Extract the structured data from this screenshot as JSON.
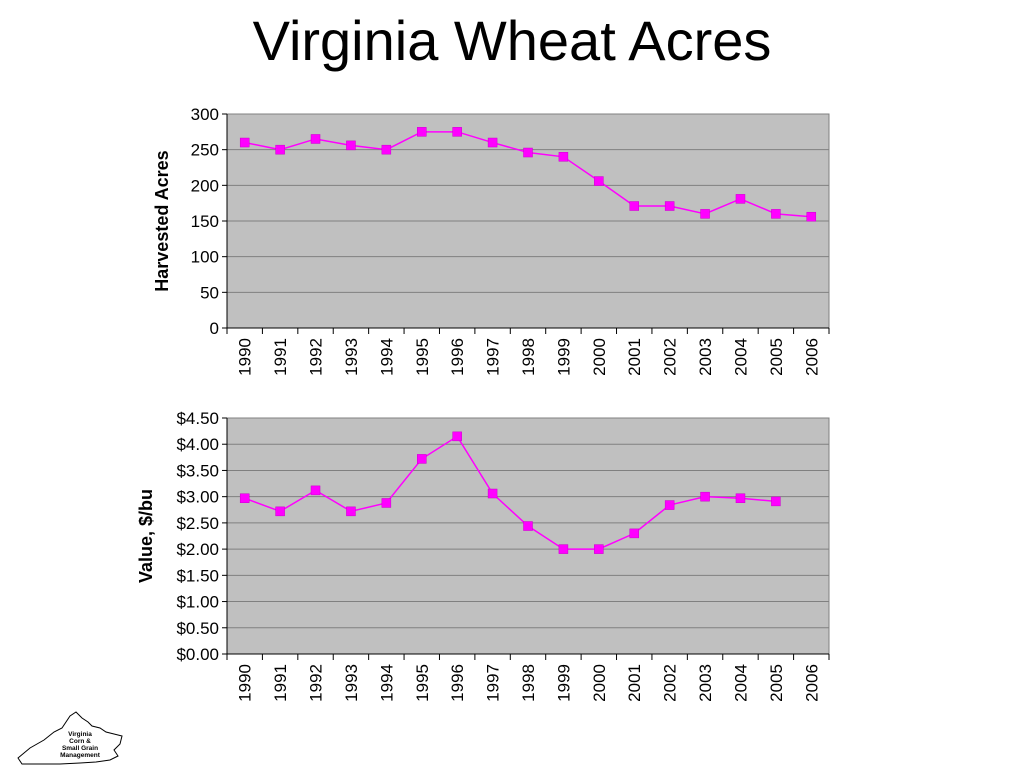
{
  "title": "Virginia Wheat Acres",
  "logo_text": [
    "Virginia",
    "Corn &",
    "Small Grain",
    "Management"
  ],
  "colors": {
    "line": "#ff00ff",
    "plot_bg": "#c0c0c0",
    "grid": "#808080"
  },
  "chart_data": [
    {
      "type": "line",
      "ylabel": "Harvested Acres",
      "categories": [
        "1990",
        "1991",
        "1992",
        "1993",
        "1994",
        "1995",
        "1996",
        "1997",
        "1998",
        "1999",
        "2000",
        "2001",
        "2002",
        "2003",
        "2004",
        "2005",
        "2006"
      ],
      "yticks": [
        "0",
        "50",
        "100",
        "150",
        "200",
        "250",
        "300"
      ],
      "ylim": [
        0,
        300
      ],
      "series": [
        {
          "values": [
            260,
            250,
            265,
            256,
            250,
            275,
            275,
            260,
            246,
            240,
            206,
            171,
            171,
            160,
            181,
            160,
            156
          ]
        }
      ]
    },
    {
      "type": "line",
      "ylabel": "Value, $/bu",
      "categories": [
        "1990",
        "1991",
        "1992",
        "1993",
        "1994",
        "1995",
        "1996",
        "1997",
        "1998",
        "1999",
        "2000",
        "2001",
        "2002",
        "2003",
        "2004",
        "2005",
        "2006"
      ],
      "yticks": [
        "$0.00",
        "$0.50",
        "$1.00",
        "$1.50",
        "$2.00",
        "$2.50",
        "$3.00",
        "$3.50",
        "$4.00",
        "$4.50"
      ],
      "ylim": [
        0,
        4.5
      ],
      "series": [
        {
          "values": [
            2.97,
            2.72,
            3.12,
            2.72,
            2.88,
            3.72,
            4.15,
            3.06,
            2.44,
            2.0,
            2.0,
            2.3,
            2.84,
            3.0,
            2.97,
            2.91,
            null
          ]
        }
      ]
    }
  ]
}
